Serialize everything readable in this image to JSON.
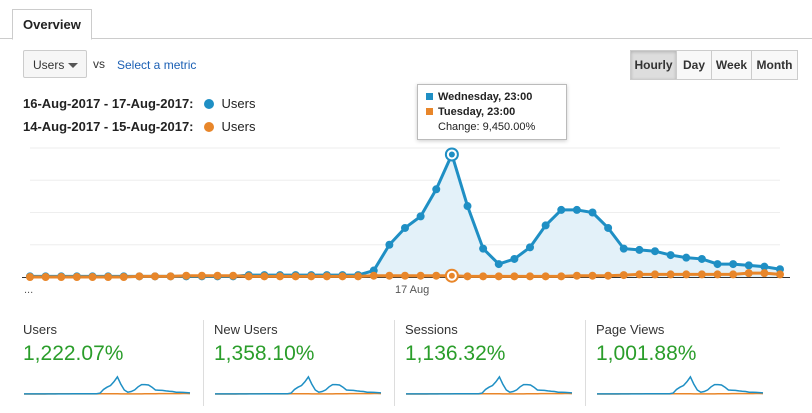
{
  "tab": {
    "label": "Overview"
  },
  "controls": {
    "metric_select": "Users",
    "vs": "vs",
    "select_metric": "Select a metric",
    "granularity": [
      "Hourly",
      "Day",
      "Week",
      "Month"
    ],
    "granularity_active": "Hourly"
  },
  "legend": [
    {
      "range": "16-Aug-2017 - 17-Aug-2017:",
      "name": "Users",
      "color": "#1f8fc4"
    },
    {
      "range": "14-Aug-2017 - 15-Aug-2017:",
      "name": "Users",
      "color": "#e8862a"
    }
  ],
  "tooltip": {
    "primary": "Wednesday, 23:00",
    "secondary": "Tuesday, 23:00",
    "change": "Change: 9,450.00%"
  },
  "axis": {
    "left_label": "...",
    "mid_label": "17 Aug"
  },
  "chart_data": {
    "type": "area",
    "x_count": 49,
    "ylim": [
      0,
      100
    ],
    "grid": true,
    "series": [
      {
        "name": "16-Aug-2017 - 17-Aug-2017",
        "color": "#1f8fc4",
        "values": [
          0.5,
          0.5,
          0.5,
          0.5,
          0.5,
          0.5,
          0.5,
          0.5,
          0.5,
          0.5,
          0.5,
          0.5,
          0.5,
          0.5,
          1.5,
          1.5,
          1.5,
          1.5,
          1.5,
          1.5,
          1.5,
          1.5,
          5,
          25,
          38,
          47,
          68,
          95,
          55,
          22,
          10,
          14,
          23,
          40,
          52,
          52,
          50,
          38,
          22,
          21,
          20,
          17,
          15,
          14,
          10,
          10,
          9,
          8,
          6
        ]
      },
      {
        "name": "14-Aug-2017 - 15-Aug-2017",
        "color": "#e8862a",
        "values": [
          0,
          0,
          0,
          0,
          0,
          0,
          0,
          0.5,
          0.5,
          0.5,
          1,
          1,
          1,
          1,
          0.5,
          0.5,
          0.5,
          0.5,
          0.5,
          0.5,
          0.5,
          0.5,
          1,
          1,
          1,
          1,
          1,
          1,
          0.5,
          0.5,
          0.5,
          0.5,
          0.5,
          0.5,
          0.5,
          1,
          1,
          1,
          1.5,
          2,
          2,
          2,
          2,
          2,
          2,
          2,
          3,
          3,
          2
        ]
      }
    ]
  },
  "scorecards": [
    {
      "title": "Users",
      "value": "1,222.07%"
    },
    {
      "title": "New Users",
      "value": "1,358.10%"
    },
    {
      "title": "Sessions",
      "value": "1,136.32%"
    },
    {
      "title": "Page Views",
      "value": "1,001.88%"
    }
  ]
}
